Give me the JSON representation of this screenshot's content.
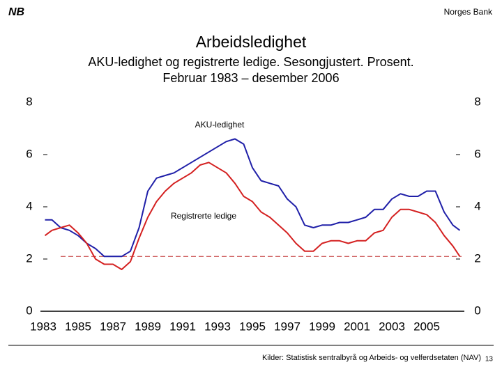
{
  "header": {
    "logo": "NB",
    "org": "Norges Bank"
  },
  "chart_data": {
    "type": "line",
    "title": "Arbeidsledighet",
    "subtitle": [
      "AKU-ledighet og registrerte ledige. Sesongjustert. Prosent.",
      "Februar 1983 – desember 2006"
    ],
    "x": [
      1983.1,
      1983.5,
      1984,
      1984.5,
      1985,
      1985.5,
      1986,
      1986.5,
      1987,
      1987.5,
      1988,
      1988.5,
      1989,
      1989.5,
      1990,
      1990.5,
      1991,
      1991.5,
      1992,
      1992.5,
      1993,
      1993.5,
      1994,
      1994.5,
      1995,
      1995.5,
      1996,
      1996.5,
      1997,
      1997.5,
      1998,
      1998.5,
      1999,
      1999.5,
      2000,
      2000.5,
      2001,
      2001.5,
      2002,
      2002.5,
      2003,
      2003.5,
      2004,
      2004.5,
      2005,
      2005.5,
      2006,
      2006.5,
      2006.9
    ],
    "series": [
      {
        "name": "AKU-ledighet",
        "color": "#1f1fa8",
        "values": [
          3.5,
          3.5,
          3.2,
          3.1,
          2.9,
          2.6,
          2.4,
          2.1,
          2.1,
          2.1,
          2.3,
          3.2,
          4.6,
          5.1,
          5.2,
          5.3,
          5.5,
          5.7,
          5.9,
          6.1,
          6.3,
          6.5,
          6.6,
          6.4,
          5.5,
          5.0,
          4.9,
          4.8,
          4.3,
          4.0,
          3.3,
          3.2,
          3.3,
          3.3,
          3.4,
          3.4,
          3.5,
          3.6,
          3.9,
          3.9,
          4.3,
          4.5,
          4.4,
          4.4,
          4.6,
          4.6,
          3.8,
          3.3,
          3.1
        ]
      },
      {
        "name": "Registrerte ledige",
        "color": "#d42020",
        "values": [
          2.9,
          3.1,
          3.2,
          3.3,
          3.0,
          2.6,
          2.0,
          1.8,
          1.8,
          1.6,
          1.9,
          2.8,
          3.6,
          4.2,
          4.6,
          4.9,
          5.1,
          5.3,
          5.6,
          5.7,
          5.5,
          5.3,
          4.9,
          4.4,
          4.2,
          3.8,
          3.6,
          3.3,
          3.0,
          2.6,
          2.3,
          2.3,
          2.6,
          2.7,
          2.7,
          2.6,
          2.7,
          2.7,
          3.0,
          3.1,
          3.6,
          3.9,
          3.9,
          3.8,
          3.7,
          3.4,
          2.9,
          2.5,
          2.1
        ]
      }
    ],
    "reference_line": {
      "value": 2.1,
      "from": 1984,
      "to": 2007,
      "color": "#c03030"
    },
    "xlim": [
      1983,
      2007
    ],
    "xticks": [
      1983,
      1985,
      1987,
      1989,
      1991,
      1993,
      1995,
      1997,
      1999,
      2001,
      2003,
      2005
    ],
    "ylim": [
      0,
      8
    ],
    "yticks": [
      0,
      2,
      4,
      6,
      8
    ],
    "y2lim": [
      0,
      8
    ],
    "y2ticks": [
      0,
      2,
      4,
      6,
      8
    ],
    "grid": false,
    "source": "Kilder: Statistisk sentralbyrå og Arbeids- og velferdsetaten (NAV)"
  },
  "page_number": "13"
}
